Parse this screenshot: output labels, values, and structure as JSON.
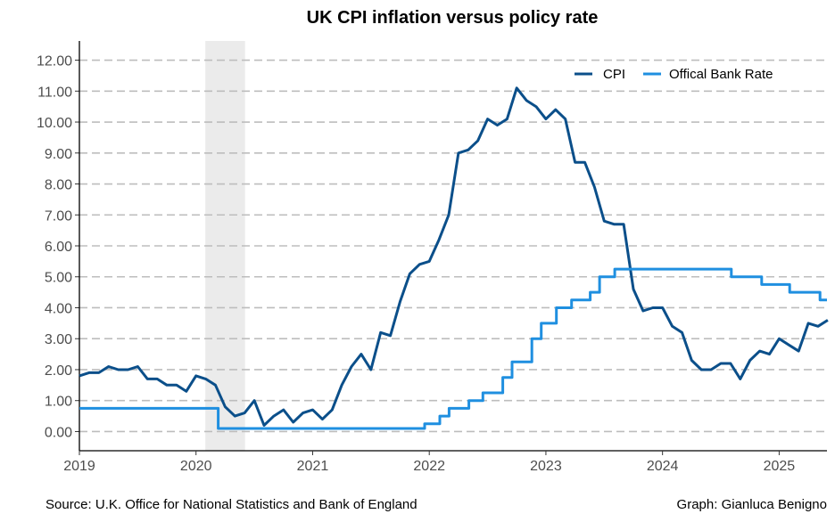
{
  "chart_data": {
    "type": "line",
    "title": "UK CPI inflation versus policy rate",
    "xlabel": "",
    "ylabel": "",
    "xlim": [
      2019.0,
      2025.41
    ],
    "ylim": [
      -0.62,
      12.62
    ],
    "y_ticks": [
      "0.00",
      "1.00",
      "2.00",
      "3.00",
      "4.00",
      "5.00",
      "6.00",
      "7.00",
      "8.00",
      "9.00",
      "10.00",
      "11.00",
      "12.00"
    ],
    "x_ticks": [
      "2019",
      "2020",
      "2021",
      "2022",
      "2023",
      "2024",
      "2025"
    ],
    "grid": "horizontal dashed",
    "legend_position": "top-right",
    "shaded_period": {
      "start": 2020.08,
      "end": 2020.42,
      "color": "#ebebeb"
    },
    "series": [
      {
        "name": "CPI",
        "color": "#0b4f8a",
        "step": false,
        "x_start": 2019.0,
        "x_step": 0.083333,
        "values": [
          1.8,
          1.9,
          1.9,
          2.1,
          2.0,
          2.0,
          2.1,
          1.7,
          1.7,
          1.5,
          1.5,
          1.3,
          1.8,
          1.7,
          1.5,
          0.8,
          0.5,
          0.6,
          1.0,
          0.2,
          0.5,
          0.7,
          0.3,
          0.6,
          0.7,
          0.4,
          0.7,
          1.5,
          2.1,
          2.5,
          2.0,
          3.2,
          3.1,
          4.2,
          5.1,
          5.4,
          5.5,
          6.2,
          7.0,
          9.0,
          9.1,
          9.4,
          10.1,
          9.9,
          10.1,
          11.1,
          10.7,
          10.5,
          10.1,
          10.4,
          10.1,
          8.7,
          8.7,
          7.9,
          6.8,
          6.7,
          6.7,
          4.6,
          3.9,
          4.0,
          4.0,
          3.4,
          3.2,
          2.3,
          2.0,
          2.0,
          2.2,
          2.2,
          1.7,
          2.3,
          2.6,
          2.5,
          3.0,
          2.8,
          2.6,
          3.5,
          3.4,
          3.6
        ]
      },
      {
        "name": "Offical Bank Rate",
        "color": "#1f8fe0",
        "step": true,
        "points": [
          [
            2019.0,
            0.75
          ],
          [
            2020.19,
            0.1
          ],
          [
            2021.96,
            0.25
          ],
          [
            2022.09,
            0.5
          ],
          [
            2022.17,
            0.75
          ],
          [
            2022.34,
            1.0
          ],
          [
            2022.46,
            1.25
          ],
          [
            2022.63,
            1.75
          ],
          [
            2022.71,
            2.25
          ],
          [
            2022.88,
            3.0
          ],
          [
            2022.96,
            3.5
          ],
          [
            2023.09,
            4.0
          ],
          [
            2023.22,
            4.25
          ],
          [
            2023.38,
            4.5
          ],
          [
            2023.46,
            5.0
          ],
          [
            2023.59,
            5.25
          ],
          [
            2024.59,
            5.0
          ],
          [
            2024.85,
            4.75
          ],
          [
            2025.09,
            4.5
          ],
          [
            2025.35,
            4.25
          ],
          [
            2025.41,
            4.25
          ]
        ]
      }
    ]
  },
  "footer": {
    "source": "Source: U.K. Office for National Statistics and Bank of England",
    "credit": "Graph: Gianluca Benigno"
  }
}
